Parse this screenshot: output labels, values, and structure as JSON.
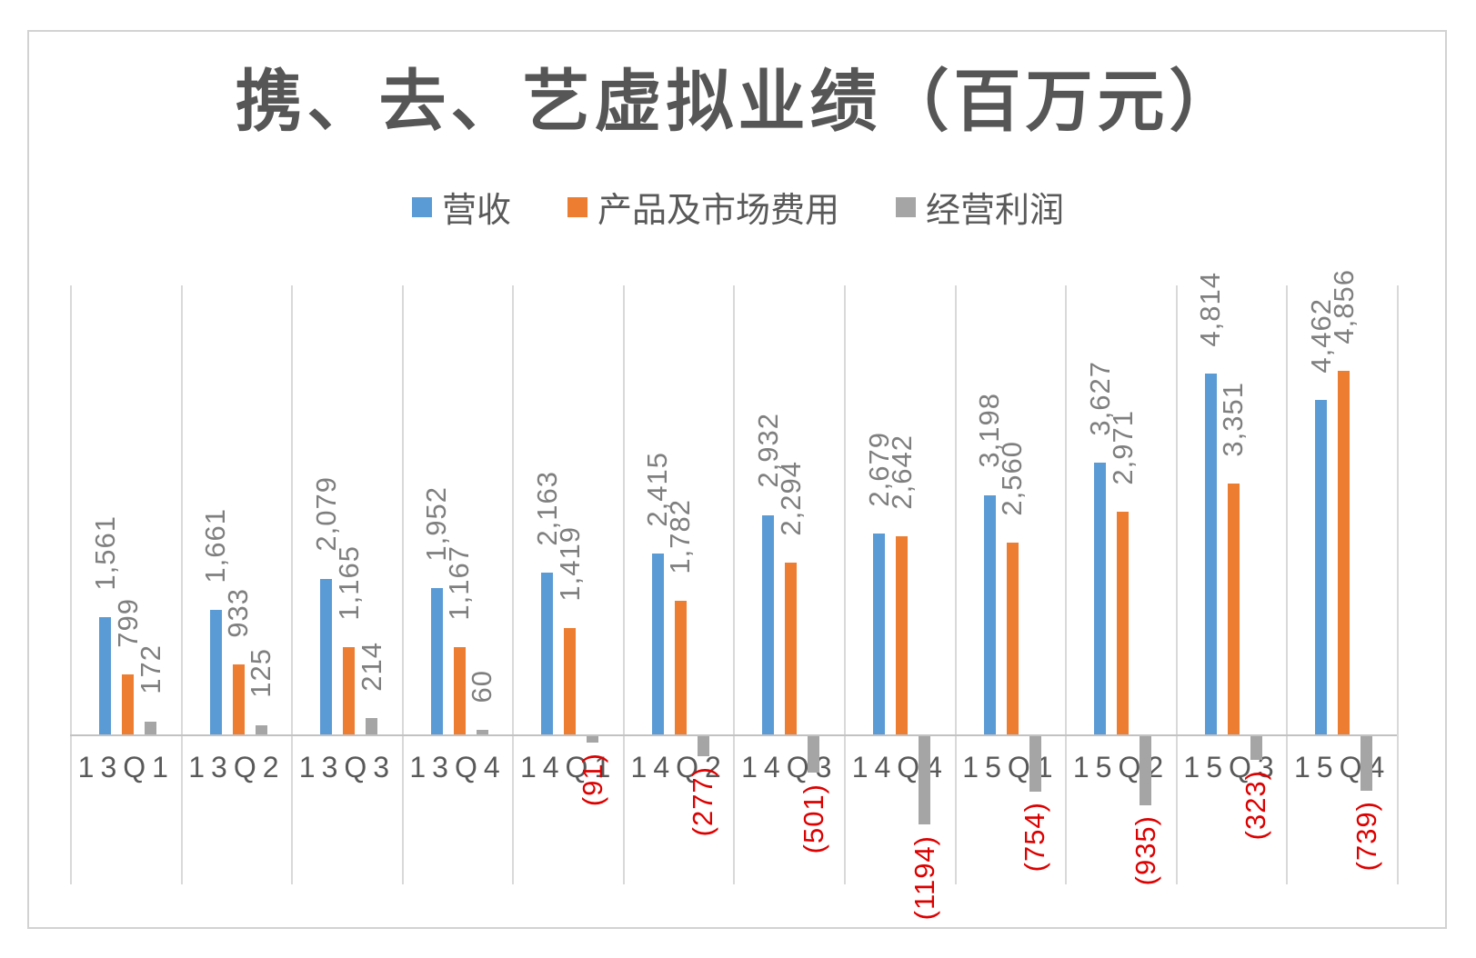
{
  "page": {
    "background": "#ffffff",
    "frame_border_color": "#d2d2d2"
  },
  "chart_data": {
    "type": "bar",
    "title": "携、去、艺虚拟业绩（百万元）",
    "title_color": "#565656",
    "categories": [
      "13Q1",
      "13Q2",
      "13Q3",
      "13Q4",
      "14Q1",
      "14Q2",
      "14Q3",
      "14Q4",
      "15Q1",
      "15Q2",
      "15Q3",
      "15Q4"
    ],
    "series": [
      {
        "name": "营收",
        "color": "#5B9BD5",
        "values": [
          1561,
          1661,
          2079,
          1952,
          2163,
          2415,
          2932,
          2679,
          3198,
          3627,
          4814,
          4462
        ],
        "labels": [
          "1,561",
          "1,661",
          "2,079",
          "1,952",
          "2,163",
          "2,415",
          "2,932",
          "2,679",
          "3,198",
          "3,627",
          "4,814",
          "4,462"
        ]
      },
      {
        "name": "产品及市场费用",
        "color": "#ED7D31",
        "values": [
          799,
          933,
          1165,
          1167,
          1419,
          1782,
          2294,
          2642,
          2560,
          2971,
          3351,
          4856
        ],
        "labels": [
          "799",
          "933",
          "1,165",
          "1,167",
          "1,419",
          "1,782",
          "2,294",
          "2,642",
          "2,560",
          "2,971",
          "3,351",
          "4,856"
        ]
      },
      {
        "name": "经营利润",
        "color": "#A5A5A5",
        "values": [
          172,
          125,
          214,
          60,
          -91,
          -277,
          -501,
          -1194,
          -754,
          -935,
          -323,
          -739
        ],
        "labels": [
          "172",
          "125",
          "214",
          "60",
          "(91)",
          "(277)",
          "(501)",
          "(1194)",
          "(754)",
          "(935)",
          "(323)",
          "(739)"
        ]
      }
    ],
    "ylim": [
      -2000,
      6000
    ],
    "grid": "vertical category separators only",
    "gridline_color": "#d9d9d9",
    "axis_line_color": "#c2c2c2",
    "positive_label_color": "#7f7f7f",
    "negative_label_color": "#dd0000",
    "axis_tick_label_color": "#595959",
    "legend_position": "top",
    "data_label_rotation": 270,
    "xlabel": "",
    "ylabel": ""
  }
}
